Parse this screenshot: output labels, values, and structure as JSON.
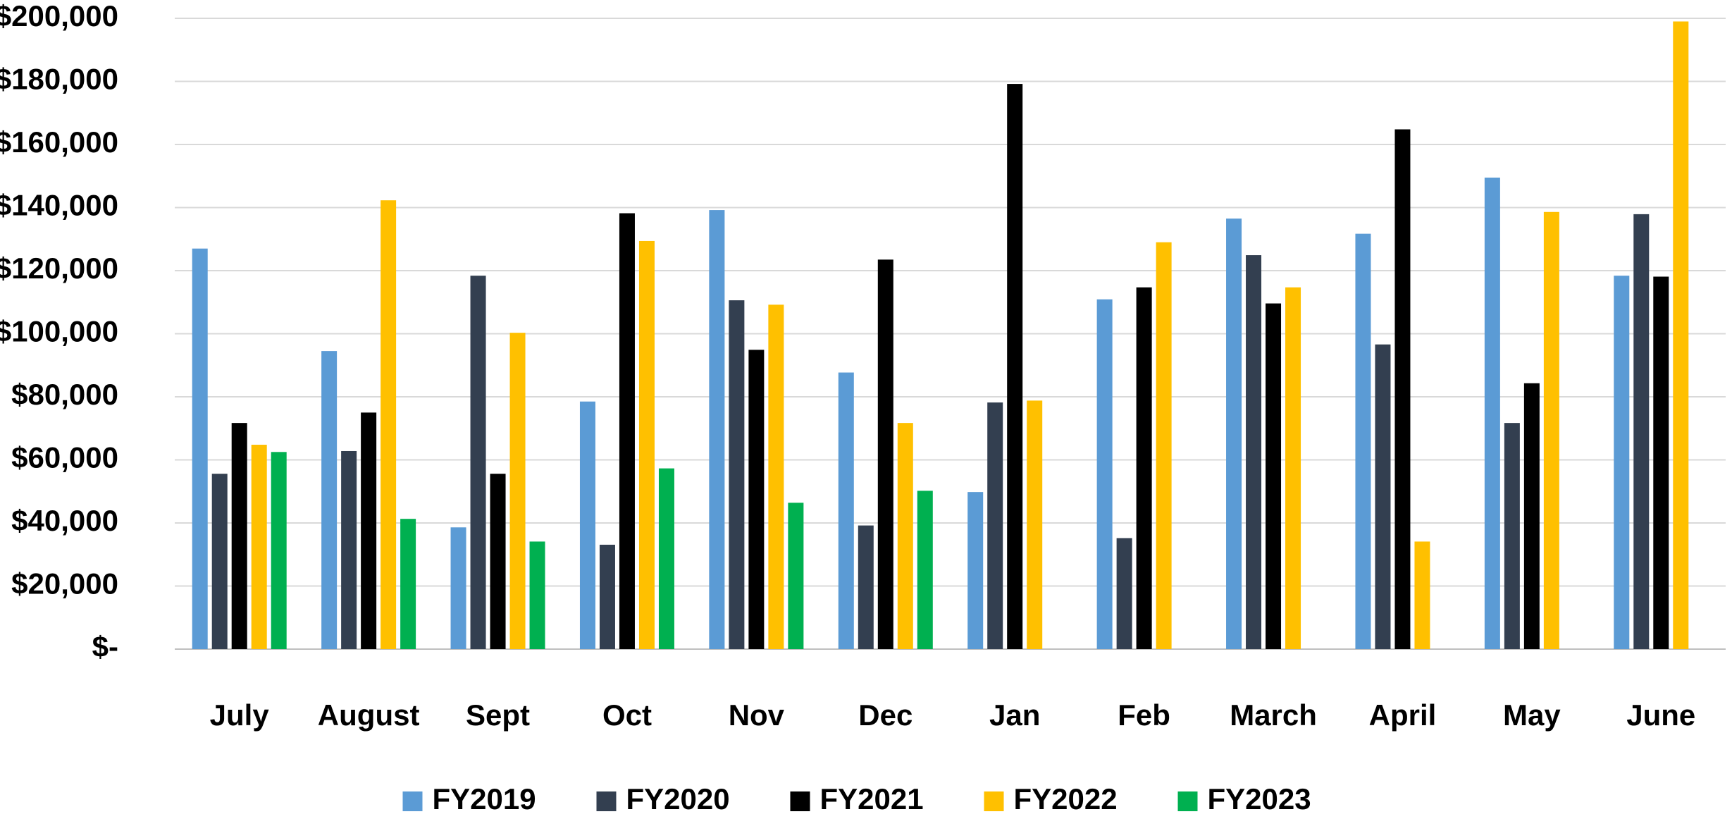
{
  "chart_data": {
    "type": "bar",
    "categories": [
      "July",
      "August",
      "Sept",
      "Oct",
      "Nov",
      "Dec",
      "Jan",
      "Feb",
      "March",
      "April",
      "May",
      "June"
    ],
    "series": [
      {
        "name": "FY2019",
        "color": "#5b9bd5",
        "values": [
          127000,
          94500,
          38600,
          78500,
          139200,
          87700,
          49800,
          110900,
          136500,
          131700,
          149500,
          118400
        ]
      },
      {
        "name": "FY2020",
        "color": "#333f50",
        "values": [
          55600,
          62800,
          118400,
          33100,
          110600,
          39200,
          78200,
          35200,
          124900,
          96600,
          71700,
          137900
        ]
      },
      {
        "name": "FY2021",
        "color": "#000000",
        "values": [
          71700,
          75000,
          55600,
          138200,
          94900,
          123500,
          179200,
          114700,
          109600,
          164800,
          84300,
          118100
        ]
      },
      {
        "name": "FY2022",
        "color": "#ffc000",
        "values": [
          64800,
          142300,
          100300,
          129400,
          109200,
          71700,
          78800,
          129000,
          114700,
          34100,
          138600,
          199000
        ]
      },
      {
        "name": "FY2023",
        "color": "#00b050",
        "values": [
          62500,
          41300,
          34100,
          57300,
          46400,
          50200,
          null,
          null,
          null,
          null,
          null,
          null
        ]
      }
    ],
    "ylim": [
      0,
      200000
    ],
    "yticks": [
      {
        "value": 0,
        "label": "$-"
      },
      {
        "value": 20000,
        "label": "$20,000"
      },
      {
        "value": 40000,
        "label": "$40,000"
      },
      {
        "value": 60000,
        "label": "$60,000"
      },
      {
        "value": 80000,
        "label": "$80,000"
      },
      {
        "value": 100000,
        "label": "$100,000"
      },
      {
        "value": 120000,
        "label": "$120,000"
      },
      {
        "value": 140000,
        "label": "$140,000"
      },
      {
        "value": 160000,
        "label": "$160,000"
      },
      {
        "value": 180000,
        "label": "$180,000"
      },
      {
        "value": 200000,
        "label": "$200,000"
      }
    ],
    "grid": true,
    "legend": "bottom"
  }
}
